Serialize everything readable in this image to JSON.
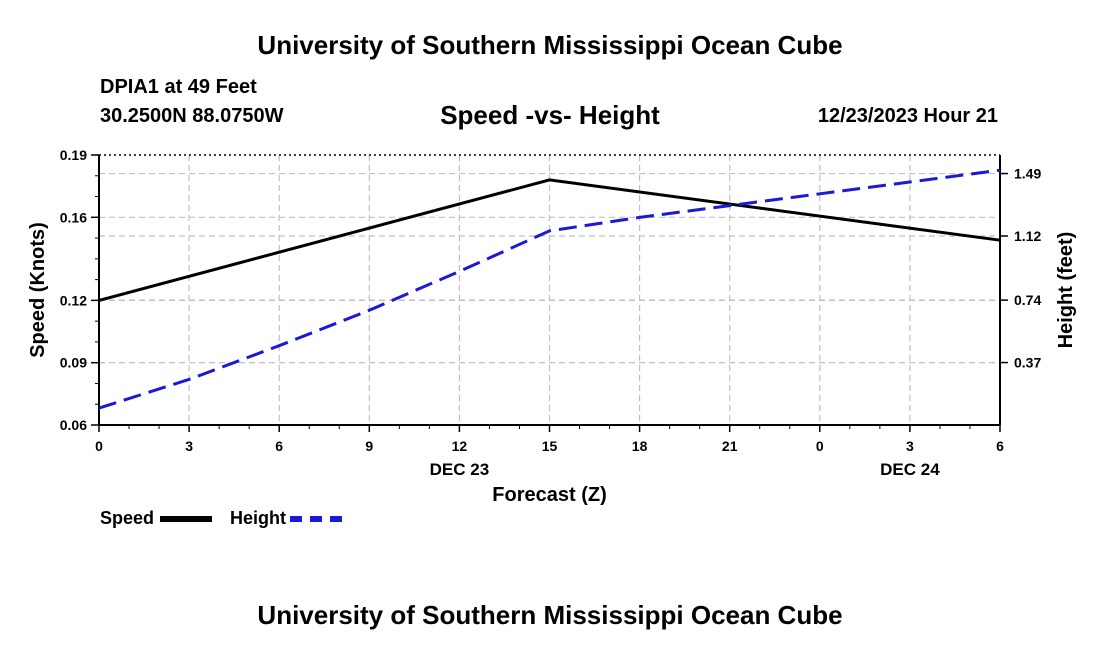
{
  "header": {
    "title": "University of Southern Mississippi Ocean Cube",
    "station": "DPIA1 at 49 Feet",
    "coords": "30.2500N  88.0750W",
    "chart_title": "Speed -vs- Height",
    "datetime": "12/23/2023 Hour 21"
  },
  "footer": {
    "title": "University of Southern Mississippi Ocean Cube"
  },
  "colors": {
    "speed": "#000000",
    "height": "#1a1ad6",
    "grid": "#c0c0c0"
  },
  "chart_data": {
    "type": "line",
    "title": "Speed -vs- Height",
    "xlabel": "Forecast (Z)",
    "ylabel": "Speed (Knots)",
    "y2label": "Height (feet)",
    "x": [
      0,
      3,
      6,
      9,
      12,
      15,
      18,
      21,
      24,
      27,
      30
    ],
    "x_tick_labels": [
      "0",
      "3",
      "6",
      "9",
      "12",
      "15",
      "18",
      "21",
      "0",
      "3",
      "6"
    ],
    "x_date_labels": [
      {
        "x": 12,
        "label": "DEC 23"
      },
      {
        "x": 27,
        "label": "DEC 24"
      }
    ],
    "xlim": [
      0,
      30
    ],
    "ylim": [
      0.06,
      0.19
    ],
    "y_ticks": [
      "0.06",
      "0.09",
      "0.12",
      "0.16",
      "0.19"
    ],
    "y_tick_values": [
      0.06,
      0.09,
      0.12,
      0.16,
      0.19
    ],
    "y2lim": [
      0,
      1.6
    ],
    "y2_ticks": [
      "0.37",
      "0.74",
      "1.12",
      "1.49"
    ],
    "y2_tick_values": [
      0.37,
      0.74,
      1.12,
      1.49
    ],
    "grid": true,
    "series": [
      {
        "name": "Speed",
        "axis": "left",
        "style": "solid",
        "points": [
          [
            0,
            0.12
          ],
          [
            15,
            0.178
          ],
          [
            30,
            0.149
          ]
        ]
      },
      {
        "name": "Height",
        "axis": "right",
        "style": "dashed",
        "points": [
          [
            0,
            0.1
          ],
          [
            3,
            0.27
          ],
          [
            6,
            0.47
          ],
          [
            9,
            0.68
          ],
          [
            12,
            0.91
          ],
          [
            15,
            1.15
          ],
          [
            18,
            1.23
          ],
          [
            21,
            1.3
          ],
          [
            24,
            1.37
          ],
          [
            27,
            1.44
          ],
          [
            30,
            1.51
          ]
        ]
      }
    ],
    "legend": [
      "Speed",
      "Height"
    ]
  }
}
